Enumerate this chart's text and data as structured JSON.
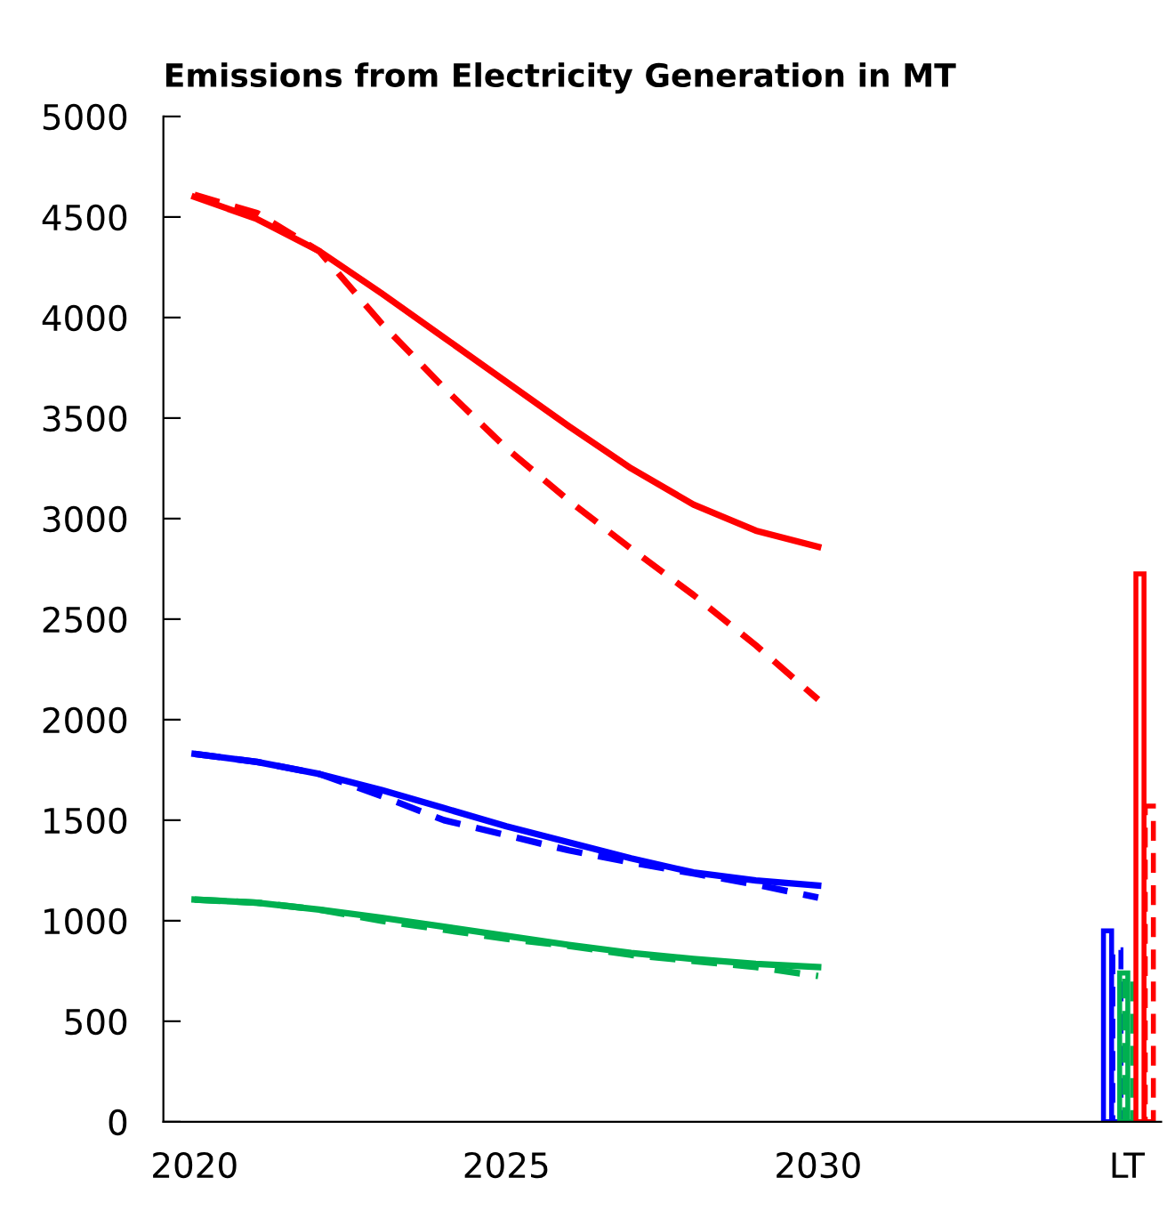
{
  "chart_data": {
    "type": "line",
    "title": "Emissions from Electricity Generation in MT",
    "xlim": [
      2019.5,
      2035.5
    ],
    "xticks": [
      2020,
      2025,
      2030,
      {
        "value": 2034.95,
        "label": "LT"
      }
    ],
    "ylim": [
      0,
      5000
    ],
    "yticks": [
      0,
      500,
      1000,
      1500,
      2000,
      2500,
      3000,
      3500,
      4000,
      4500,
      5000
    ],
    "grid": false,
    "legend": false,
    "marker": "none",
    "series": [
      {
        "color": "#ff0000",
        "line_style": "solid",
        "x": [
          2020,
          2021,
          2022,
          2023,
          2024,
          2025,
          2026,
          2027,
          2028,
          2029,
          2030
        ],
        "values": [
          4600,
          4490,
          4330,
          4120,
          3900,
          3680,
          3460,
          3250,
          3070,
          2940,
          2860
        ]
      },
      {
        "color": "#ff0000",
        "line_style": "dashed",
        "x": [
          2020,
          2021,
          2022,
          2023,
          2024,
          2025,
          2026,
          2027,
          2028,
          2029,
          2030
        ],
        "values": [
          4610,
          4520,
          4330,
          3970,
          3650,
          3350,
          3090,
          2850,
          2620,
          2370,
          2100
        ]
      },
      {
        "color": "#0000ff",
        "line_style": "solid",
        "x": [
          2020,
          2021,
          2022,
          2023,
          2024,
          2025,
          2026,
          2027,
          2028,
          2029,
          2030
        ],
        "values": [
          1830,
          1790,
          1730,
          1650,
          1560,
          1470,
          1390,
          1310,
          1240,
          1200,
          1175
        ]
      },
      {
        "color": "#0000ff",
        "line_style": "dashed",
        "x": [
          2020,
          2021,
          2022,
          2023,
          2024,
          2025,
          2026,
          2027,
          2028,
          2029,
          2030
        ],
        "values": [
          1830,
          1790,
          1730,
          1620,
          1500,
          1425,
          1350,
          1290,
          1235,
          1180,
          1115
        ]
      },
      {
        "color": "#00b050",
        "line_style": "solid",
        "x": [
          2020,
          2021,
          2022,
          2023,
          2024,
          2025,
          2026,
          2027,
          2028,
          2029,
          2030
        ],
        "values": [
          1105,
          1090,
          1055,
          1015,
          970,
          925,
          880,
          840,
          810,
          785,
          770
        ]
      },
      {
        "color": "#00b050",
        "line_style": "dashed",
        "x": [
          2020,
          2021,
          2022,
          2023,
          2024,
          2025,
          2026,
          2027,
          2028,
          2029,
          2030
        ],
        "values": [
          1105,
          1090,
          1055,
          1000,
          955,
          910,
          875,
          830,
          800,
          770,
          725
        ]
      },
      {
        "type": "bar",
        "color": "#0000ff",
        "line_style": "solid",
        "x": [
          2034.64
        ],
        "values": [
          950
        ]
      },
      {
        "type": "bar",
        "color": "#0000ff",
        "line_style": "dashed",
        "x": [
          2034.79
        ],
        "values": [
          855
        ]
      },
      {
        "type": "bar",
        "color": "#00b050",
        "line_style": "solid",
        "x": [
          2034.9
        ],
        "values": [
          740
        ]
      },
      {
        "type": "bar",
        "color": "#00b050",
        "line_style": "dashed",
        "x": [
          2034.98
        ],
        "values": [
          715
        ]
      },
      {
        "type": "bar",
        "color": "#ff0000",
        "line_style": "solid",
        "x": [
          2035.16
        ],
        "values": [
          2725
        ]
      },
      {
        "type": "bar",
        "color": "#ff0000",
        "line_style": "dashed",
        "x": [
          2035.31
        ],
        "values": [
          1570
        ]
      }
    ]
  }
}
